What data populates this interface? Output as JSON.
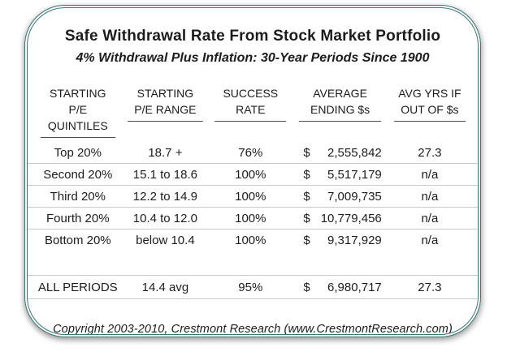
{
  "header": {
    "title": "Safe Withdrawal Rate From Stock Market Portfolio",
    "subtitle": "4% Withdrawal Plus Inflation: 30-Year Periods Since 1900"
  },
  "table": {
    "columns": [
      {
        "line1": "STARTING P/E",
        "line2": "QUINTILES"
      },
      {
        "line1": "STARTING",
        "line2": "P/E RANGE"
      },
      {
        "line1": "SUCCESS",
        "line2": "RATE"
      },
      {
        "line1": "AVERAGE",
        "line2": "ENDING $s"
      },
      {
        "line1": "AVG YRS IF",
        "line2": "OUT OF $s"
      }
    ],
    "currency_symbol": "$",
    "rows": [
      {
        "quintile": "Top 20%",
        "pe_range": "18.7 +",
        "success_rate": "76%",
        "avg_ending": "2,555,842",
        "avg_yrs_out": "27.3"
      },
      {
        "quintile": "Second 20%",
        "pe_range": "15.1 to 18.6",
        "success_rate": "100%",
        "avg_ending": "5,517,179",
        "avg_yrs_out": "n/a"
      },
      {
        "quintile": "Third 20%",
        "pe_range": "12.2 to 14.9",
        "success_rate": "100%",
        "avg_ending": "7,009,735",
        "avg_yrs_out": "n/a"
      },
      {
        "quintile": "Fourth 20%",
        "pe_range": "10.4 to 12.0",
        "success_rate": "100%",
        "avg_ending": "10,779,456",
        "avg_yrs_out": "n/a"
      },
      {
        "quintile": "Bottom 20%",
        "pe_range": "below 10.4",
        "success_rate": "100%",
        "avg_ending": "9,317,929",
        "avg_yrs_out": "n/a"
      }
    ],
    "summary_row": {
      "quintile": "ALL PERIODS",
      "pe_range": "14.4 avg",
      "success_rate": "95%",
      "avg_ending": "6,980,717",
      "avg_yrs_out": "27.3"
    }
  },
  "footer": {
    "copyright": "Copyright 2003-2010, Crestmont Research (www.CrestmontResearch.com)"
  },
  "colors": {
    "border_teal": "#3c7474",
    "divider_gray": "#c8c8c8",
    "header_underline": "#4a4a4a",
    "text": "#1c1c1c"
  },
  "chart_data": {
    "type": "table",
    "title": "Safe Withdrawal Rate From Stock Market Portfolio",
    "subtitle": "4% Withdrawal Plus Inflation: 30-Year Periods Since 1900",
    "columns": [
      "STARTING P/E QUINTILES",
      "STARTING P/E RANGE",
      "SUCCESS RATE",
      "AVERAGE ENDING $s",
      "AVG YRS IF OUT OF $s"
    ],
    "rows": [
      [
        "Top 20%",
        "18.7 +",
        "76%",
        "$ 2,555,842",
        "27.3"
      ],
      [
        "Second 20%",
        "15.1 to 18.6",
        "100%",
        "$ 5,517,179",
        "n/a"
      ],
      [
        "Third 20%",
        "12.2 to 14.9",
        "100%",
        "$ 7,009,735",
        "n/a"
      ],
      [
        "Fourth 20%",
        "10.4 to 12.0",
        "100%",
        "$ 10,779,456",
        "n/a"
      ],
      [
        "Bottom 20%",
        "below 10.4",
        "100%",
        "$ 9,317,929",
        "n/a"
      ],
      [
        "ALL PERIODS",
        "14.4 avg",
        "95%",
        "$ 6,980,717",
        "27.3"
      ]
    ],
    "source": "Copyright 2003-2010, Crestmont Research (www.CrestmontResearch.com)"
  }
}
